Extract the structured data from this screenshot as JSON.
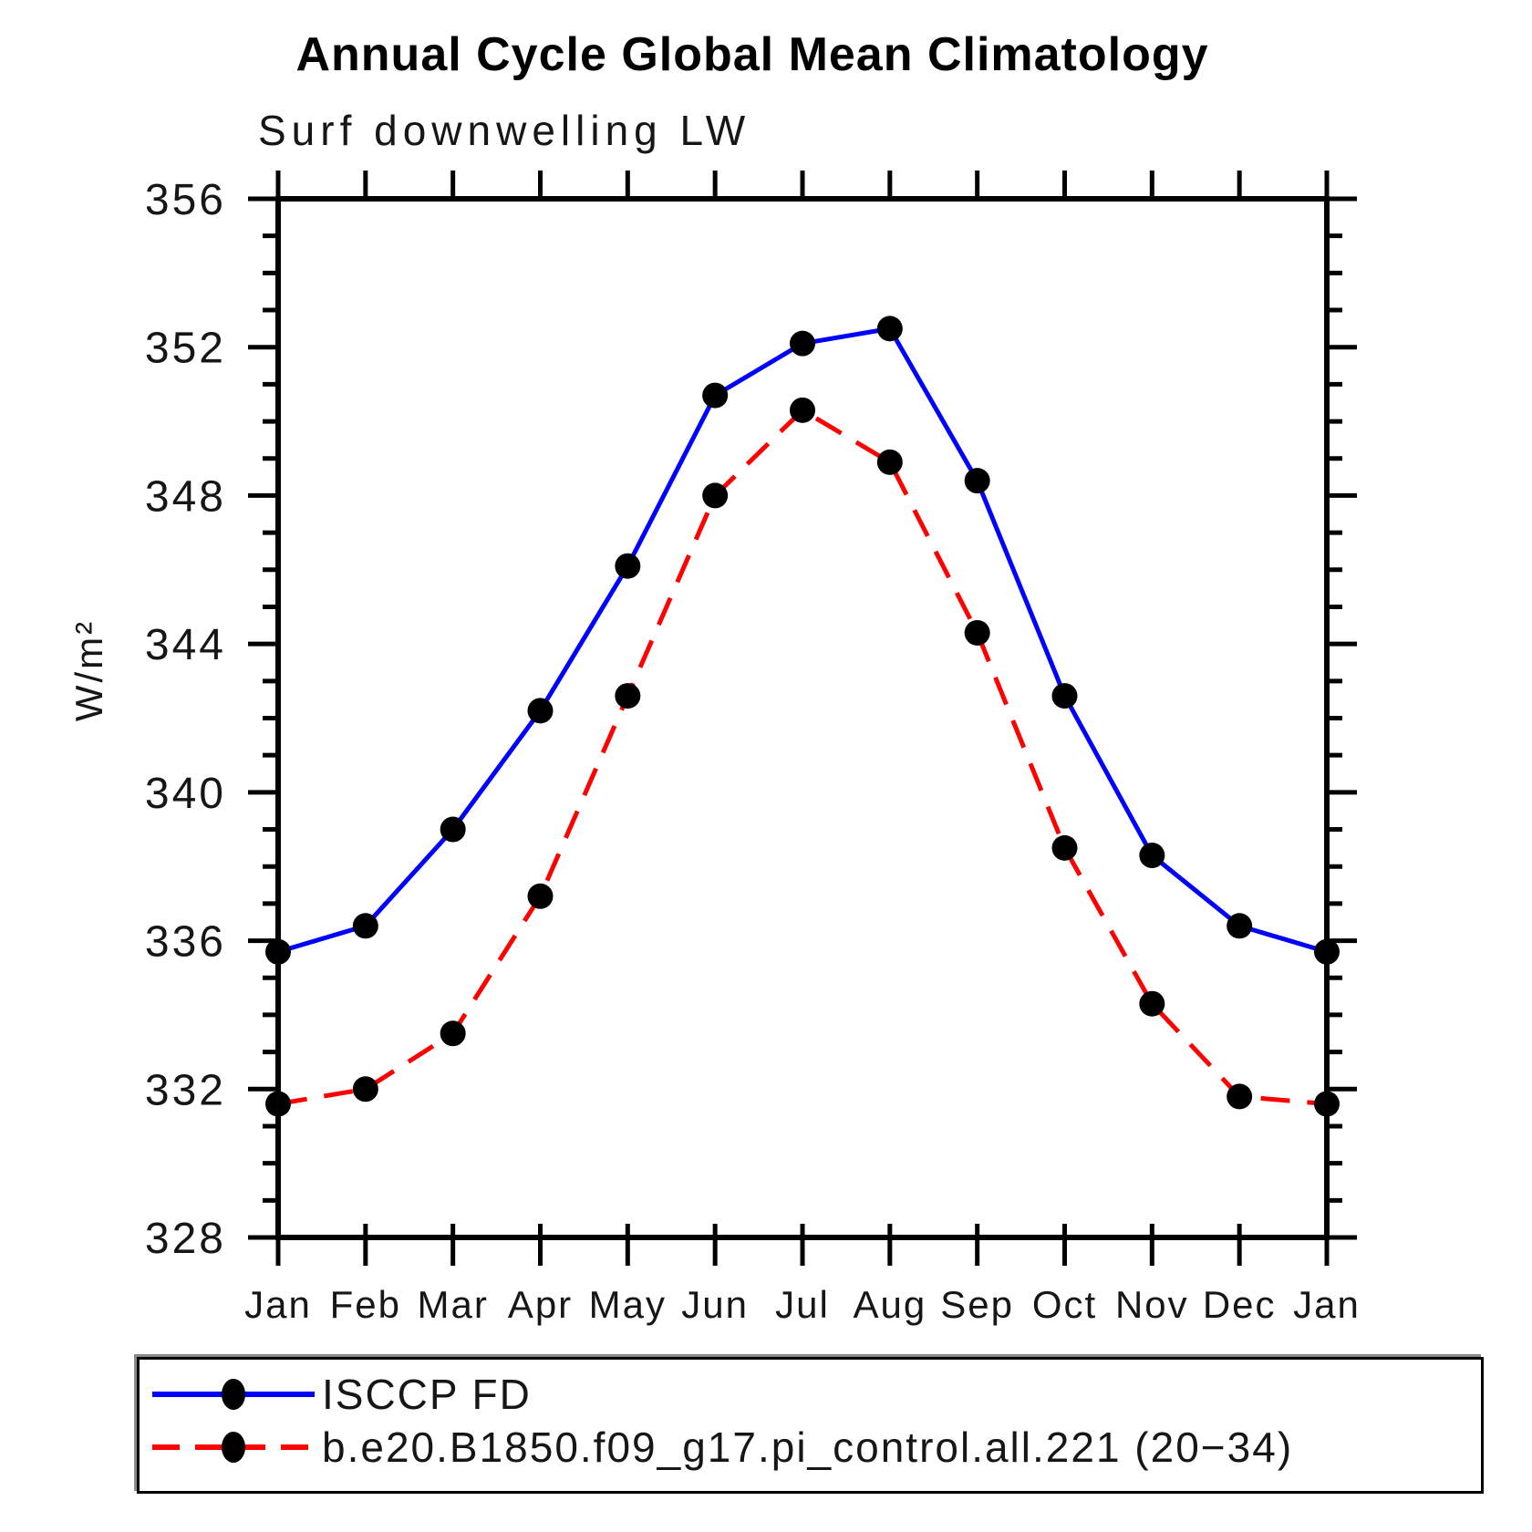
{
  "title": "Annual Cycle Global Mean Climatology",
  "chart_data": {
    "type": "line",
    "title": "Annual Cycle Global Mean Climatology",
    "subtitle": "Surf downwelling LW",
    "xlabel": "",
    "ylabel": "W/m²",
    "categories": [
      "Jan",
      "Feb",
      "Mar",
      "Apr",
      "May",
      "Jun",
      "Jul",
      "Aug",
      "Sep",
      "Oct",
      "Nov",
      "Dec",
      "Jan"
    ],
    "ylim": [
      328,
      356
    ],
    "ytick_major": 4,
    "ytick_minor": 1,
    "grid": false,
    "legend_position": "bottom-left-box",
    "series": [
      {
        "name": "ISCCP FD",
        "color": "#0000ff",
        "style": "solid",
        "marker": "circle",
        "marker_color": "#000000",
        "values": [
          335.7,
          336.4,
          339.0,
          342.2,
          346.1,
          350.7,
          352.1,
          352.5,
          348.4,
          342.6,
          338.3,
          336.4,
          335.7
        ]
      },
      {
        "name": "b.e20.B1850.f09_g17.pi_control.all.221 (20−34)",
        "color": "#ff0000",
        "style": "dashed",
        "marker": "circle",
        "marker_color": "#000000",
        "values": [
          331.6,
          332.0,
          333.5,
          337.2,
          342.6,
          348.0,
          350.3,
          348.9,
          344.3,
          338.5,
          334.3,
          331.8,
          331.6
        ]
      }
    ],
    "axis_color": "#000000"
  }
}
